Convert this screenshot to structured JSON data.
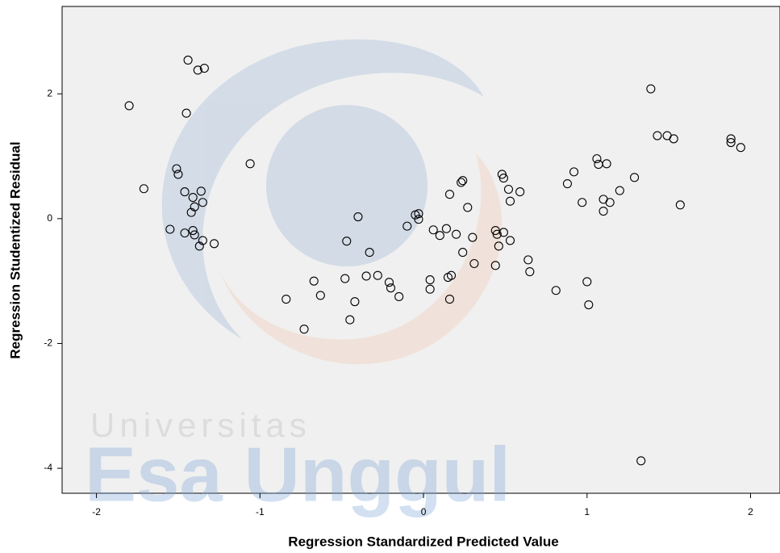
{
  "chart_data": {
    "type": "scatter",
    "x_label": "Regression Standardized Predicted Value",
    "y_label": "Regression Studentized Residual",
    "watermark": {
      "line1": "Universitas",
      "line2": "Esa Unggul"
    },
    "xlim": [
      -2.21,
      2.18
    ],
    "ylim": [
      -4.4,
      3.4
    ],
    "xticks": [
      -2,
      -1,
      0,
      1,
      2
    ],
    "yticks": [
      -4,
      -2,
      0,
      2
    ],
    "marker_color": "#000000",
    "background": "#f0f0f0",
    "series": [
      {
        "x": [
          -1.8,
          -1.71,
          -1.44,
          -1.38,
          -1.34,
          -1.45,
          -1.51,
          -1.5,
          -1.46,
          -1.41,
          -1.36,
          -1.35,
          -1.4,
          -1.42,
          -1.55,
          -1.46,
          -1.41,
          -1.4,
          -1.35,
          -1.37,
          -1.28,
          -1.06,
          -0.84,
          -0.73,
          -0.67,
          -0.63,
          -0.48,
          -0.47,
          -0.45,
          -0.42,
          -0.4,
          -0.35,
          -0.33,
          -0.28,
          -0.21,
          -0.2,
          -0.15,
          -0.1,
          -0.05,
          -0.03,
          -0.03,
          0.04,
          0.04,
          0.06,
          0.1,
          0.14,
          0.15,
          0.17,
          0.16,
          0.16,
          0.2,
          0.23,
          0.24,
          0.27,
          0.24,
          0.3,
          0.31,
          0.44,
          0.45,
          0.46,
          0.44,
          0.48,
          0.49,
          0.49,
          0.52,
          0.53,
          0.53,
          0.59,
          0.64,
          0.65,
          0.81,
          0.88,
          0.92,
          0.97,
          1.0,
          1.01,
          1.06,
          1.07,
          1.12,
          1.1,
          1.1,
          1.14,
          1.2,
          1.29,
          1.33,
          1.39,
          1.43,
          1.49,
          1.53,
          1.57,
          1.88,
          1.88,
          1.94
        ],
        "values": [
          1.81,
          0.48,
          2.54,
          2.38,
          2.41,
          1.69,
          0.8,
          0.71,
          0.43,
          0.34,
          0.44,
          0.26,
          0.19,
          0.1,
          -0.17,
          -0.23,
          -0.19,
          -0.26,
          -0.35,
          -0.44,
          -0.4,
          0.88,
          -1.29,
          -1.77,
          -1.0,
          -1.23,
          -0.96,
          -0.36,
          -1.62,
          -1.33,
          0.03,
          -0.92,
          -0.54,
          -0.91,
          -1.02,
          -1.11,
          -1.25,
          -0.12,
          0.06,
          0.08,
          -0.01,
          -0.98,
          -1.13,
          -0.18,
          -0.27,
          -0.16,
          -0.94,
          -0.91,
          -1.29,
          0.39,
          -0.25,
          0.58,
          0.61,
          0.18,
          -0.54,
          -0.3,
          -0.72,
          -0.19,
          -0.25,
          -0.44,
          -0.75,
          0.71,
          0.65,
          -0.22,
          0.47,
          -0.35,
          0.28,
          0.43,
          -0.66,
          -0.85,
          -1.15,
          0.56,
          0.75,
          0.26,
          -1.01,
          -1.38,
          0.96,
          0.87,
          0.88,
          0.31,
          0.12,
          0.26,
          0.45,
          0.66,
          -3.88,
          2.08,
          1.33,
          1.33,
          1.28,
          0.22,
          1.28,
          1.22,
          1.14
        ]
      }
    ]
  }
}
